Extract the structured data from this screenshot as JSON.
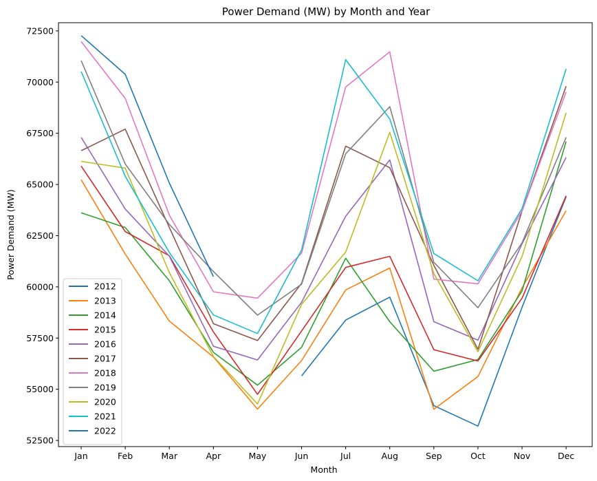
{
  "chart_data": {
    "type": "line",
    "title": "Power Demand (MW) by Month and Year",
    "xlabel": "Month",
    "ylabel": "Power Demand (MW)",
    "categories": [
      "Jan",
      "Feb",
      "Mar",
      "Apr",
      "May",
      "Jun",
      "Jul",
      "Aug",
      "Sep",
      "Oct",
      "Nov",
      "Dec"
    ],
    "yticks": [
      "52500",
      "55000",
      "57500",
      "60000",
      "62500",
      "65000",
      "67500",
      "70000",
      "72500"
    ],
    "ylim": [
      52200,
      72900
    ],
    "grid": false,
    "legend_position": "lower-left",
    "series": [
      {
        "name": "2012",
        "color": "#1f77b4",
        "values": [
          null,
          null,
          null,
          null,
          null,
          55650,
          58380,
          59500,
          54200,
          53200,
          59000,
          64400
        ]
      },
      {
        "name": "2013",
        "color": "#ff7f0e",
        "values": [
          65230,
          61600,
          58330,
          56580,
          54030,
          56400,
          59850,
          60920,
          54020,
          55620,
          59950,
          63720
        ]
      },
      {
        "name": "2014",
        "color": "#2ca02c",
        "values": [
          63620,
          62900,
          60300,
          56800,
          55200,
          57050,
          61400,
          58300,
          55880,
          56450,
          59800,
          67100
        ]
      },
      {
        "name": "2015",
        "color": "#d62728",
        "values": [
          65900,
          62700,
          61520,
          57800,
          54750,
          57850,
          60950,
          61490,
          56930,
          56380,
          59450,
          64450
        ]
      },
      {
        "name": "2016",
        "color": "#9467bd",
        "values": [
          67300,
          63800,
          61500,
          57100,
          56430,
          59250,
          63450,
          66200,
          58300,
          57400,
          62100,
          66320
        ]
      },
      {
        "name": "2017",
        "color": "#8c564b",
        "values": [
          66650,
          67700,
          62900,
          58200,
          57380,
          60170,
          66870,
          65820,
          61050,
          56950,
          63700,
          69800
        ]
      },
      {
        "name": "2018",
        "color": "#e377c2",
        "values": [
          71980,
          69200,
          63500,
          59760,
          59450,
          61650,
          69760,
          71480,
          60380,
          60150,
          63700,
          69520
        ]
      },
      {
        "name": "2019",
        "color": "#7f7f7f",
        "values": [
          71050,
          66000,
          63050,
          60750,
          58620,
          60130,
          66500,
          68800,
          61200,
          58980,
          62150,
          67300
        ]
      },
      {
        "name": "2020",
        "color": "#bcbd22",
        "values": [
          66130,
          65800,
          60700,
          56600,
          54280,
          59150,
          61700,
          67550,
          60650,
          56830,
          61480,
          68500
        ]
      },
      {
        "name": "2021",
        "color": "#17becf",
        "values": [
          70520,
          65400,
          61680,
          58630,
          57720,
          61800,
          71100,
          68200,
          61630,
          60300,
          63820,
          70640
        ]
      },
      {
        "name": "2022",
        "color": "#1f77b4",
        "values": [
          72270,
          70380,
          65070,
          60500,
          null,
          null,
          null,
          null,
          null,
          null,
          null,
          null
        ]
      }
    ]
  }
}
